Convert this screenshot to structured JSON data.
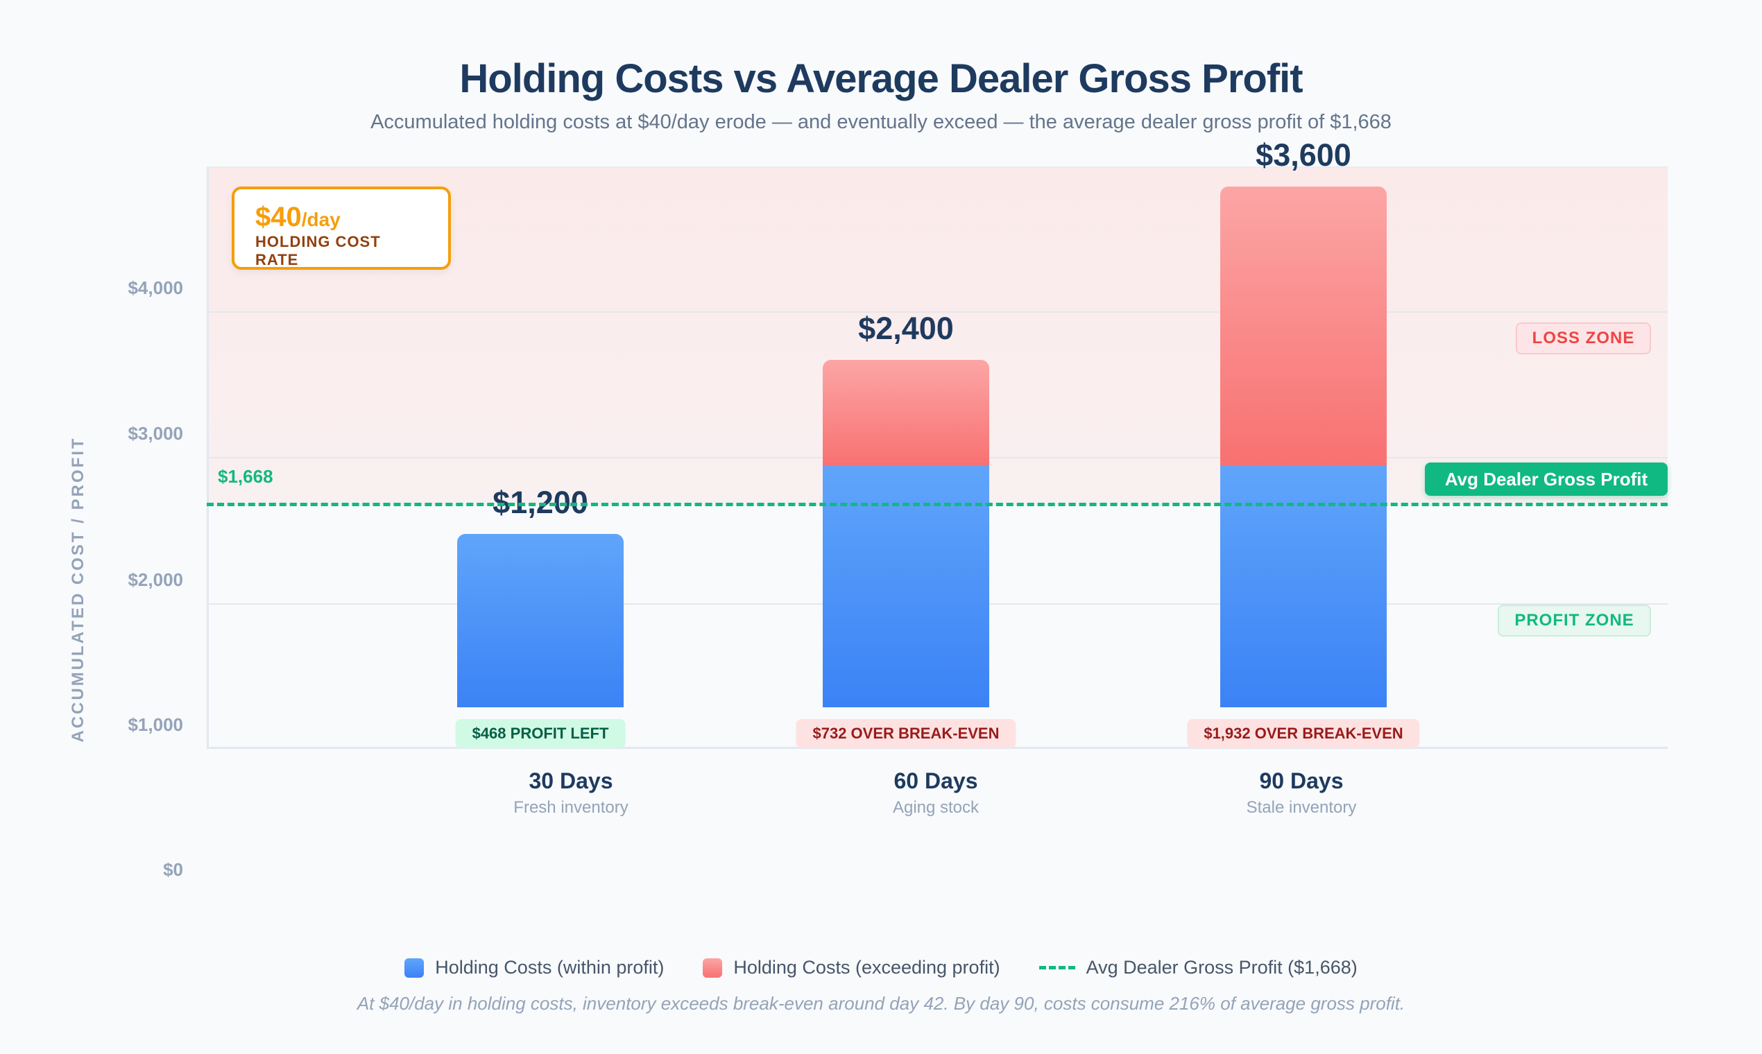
{
  "title": "Holding Costs vs Average Dealer Gross Profit",
  "subtitle": "Accumulated holding costs at $40/day erode — and eventually exceed — the average dealer gross profit of $1,668",
  "rate_box": {
    "value": "$40",
    "unit": "/day",
    "label": "HOLDING COST RATE"
  },
  "zones": {
    "loss": "LOSS ZONE",
    "profit": "PROFIT ZONE"
  },
  "avg_badge": "Avg Dealer Gross Profit",
  "line_label": "$1,668",
  "colors": {
    "within": "#3b82f6",
    "exceeding": "#f87171",
    "avg_line": "#10b981",
    "rate": "#f59e0b"
  },
  "chart_data": {
    "type": "bar",
    "stacked": true,
    "title": "Holding Costs vs Average Dealer Gross Profit",
    "ylabel": "ACCUMULATED COST / PROFIT",
    "yticks": [
      "$4,000",
      "$3,000",
      "$2,000",
      "$1,000",
      "$0"
    ],
    "categories": [
      "30 Days",
      "60 Days",
      "90 Days"
    ],
    "category_subtitles": [
      "Fresh inventory",
      "Aging stock",
      "Stale inventory"
    ],
    "totals": [
      1200,
      2400,
      3600
    ],
    "total_labels": [
      "$1,200",
      "$2,400",
      "$3,600"
    ],
    "series": [
      {
        "name": "Holding Costs (within profit)",
        "values": [
          1200,
          1668,
          1668
        ]
      },
      {
        "name": "Holding Costs (exceeding profit)",
        "values": [
          0,
          732,
          1932
        ]
      }
    ],
    "reference_line": {
      "name": "Avg Dealer Gross Profit ($1,668)",
      "value": 1668
    },
    "annotations": [
      {
        "text": "$468 PROFIT LEFT",
        "type": "profit"
      },
      {
        "text": "$732 OVER BREAK-EVEN",
        "type": "loss"
      },
      {
        "text": "$1,932 OVER BREAK-EVEN",
        "type": "loss"
      }
    ],
    "legend_position": "bottom",
    "grid": true
  },
  "footnote": "At $40/day in holding costs, inventory exceeds break-even around day 42. By day 90, costs consume 216% of average gross profit."
}
